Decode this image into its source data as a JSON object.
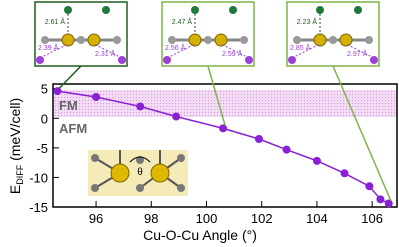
{
  "chart_data": {
    "type": "line",
    "x_label": "Cu-O-Cu Angle (°)",
    "y_label": {
      "main": "E",
      "sub": "DIFF",
      "unit": " (meV/cell)"
    },
    "x": [
      94.6,
      96.0,
      97.6,
      98.9,
      100.6,
      101.9,
      102.9,
      104.0,
      105.0,
      105.9,
      106.3,
      106.6
    ],
    "series": [
      {
        "color": "#8a1fd6",
        "values": [
          4.6,
          3.6,
          2.0,
          0.3,
          -1.7,
          -3.5,
          -5.3,
          -7.2,
          -9.3,
          -11.5,
          -13.7,
          -14.4
        ]
      }
    ],
    "xlim": [
      94.44,
      106.9
    ],
    "ylim": [
      -15,
      5.8
    ],
    "xticks": [
      96,
      98,
      100,
      102,
      104,
      106
    ],
    "yticks": [
      -15,
      -10,
      -5,
      0,
      5
    ],
    "annotations": {
      "fm": "FM",
      "afm": "AFM",
      "theta": "θ",
      "insets": [
        {
          "top": "2.61 Å",
          "left": "2.39 Å",
          "right": "2.31 Å"
        },
        {
          "top": "2.47 Å",
          "left": "2.56 Å",
          "right": "2.59 Å"
        },
        {
          "top": "2.23 Å",
          "left": "2.85 Å",
          "right": "2.97 Å"
        }
      ]
    }
  }
}
